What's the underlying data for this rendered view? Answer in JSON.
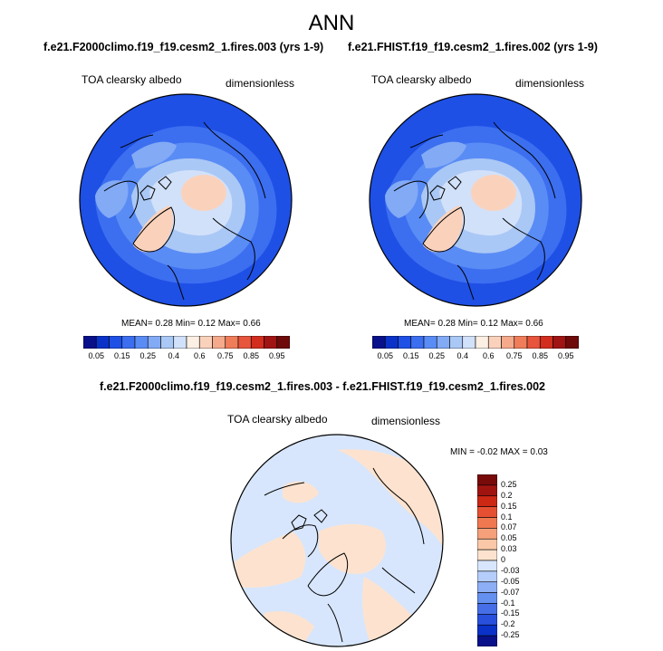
{
  "figure": {
    "title": "ANN",
    "colors": {
      "seq": [
        "#08108a",
        "#0a32c8",
        "#1e50e6",
        "#3c6ef0",
        "#5a8cf5",
        "#82aaf5",
        "#aac8f5",
        "#d2e1fa",
        "#fcefe4",
        "#fad2bc",
        "#f5aa8c",
        "#f07d5a",
        "#e6553c",
        "#d22d1e",
        "#a01414",
        "#6e0a0a"
      ],
      "diff": [
        "#08108a",
        "#0a32c8",
        "#2850dc",
        "#466ee6",
        "#6490f0",
        "#8caff5",
        "#b4cdfa",
        "#d7e6fc",
        "#fde3cf",
        "#fac8a8",
        "#f5a07a",
        "#f07850",
        "#e65032",
        "#cc2814",
        "#a01410",
        "#780a0a"
      ]
    },
    "panels": [
      {
        "case": "f.e21.F2000climo.f19_f19.cesm2_1.fires.003 (yrs 1-9)",
        "variable": "TOA clearsky albedo",
        "units": "dimensionless",
        "stats": {
          "mean_label": "MEAN=",
          "mean": "0.28",
          "min_label": "Min=",
          "min": "0.12",
          "max_label": "Max=",
          "max": "0.66"
        }
      },
      {
        "case": "f.e21.FHIST.f19_f19.cesm2_1.fires.002 (yrs 1-9)",
        "variable": "TOA clearsky albedo",
        "units": "dimensionless",
        "stats": {
          "mean_label": "MEAN=",
          "mean": "0.28",
          "min_label": "Min=",
          "min": "0.12",
          "max_label": "Max=",
          "max": "0.66"
        }
      }
    ],
    "seq_ticks": [
      "0.05",
      "0.15",
      "0.25",
      "0.4",
      "0.6",
      "0.75",
      "0.85",
      "0.95"
    ],
    "diff_panel": {
      "case": "f.e21.F2000climo.f19_f19.cesm2_1.fires.003 - f.e21.FHIST.f19_f19.cesm2_1.fires.002",
      "variable": "TOA clearsky albedo",
      "units": "dimensionless",
      "stats": {
        "min_label": "MIN =",
        "min": "-0.02",
        "max_label": "MAX =",
        "max": "0.03"
      },
      "ticks": [
        "0.25",
        "0.2",
        "0.15",
        "0.1",
        "0.07",
        "0.05",
        "0.03",
        "0",
        "-0.03",
        "-0.05",
        "-0.07",
        "-0.1",
        "-0.15",
        "-0.2",
        "-0.25"
      ]
    }
  }
}
